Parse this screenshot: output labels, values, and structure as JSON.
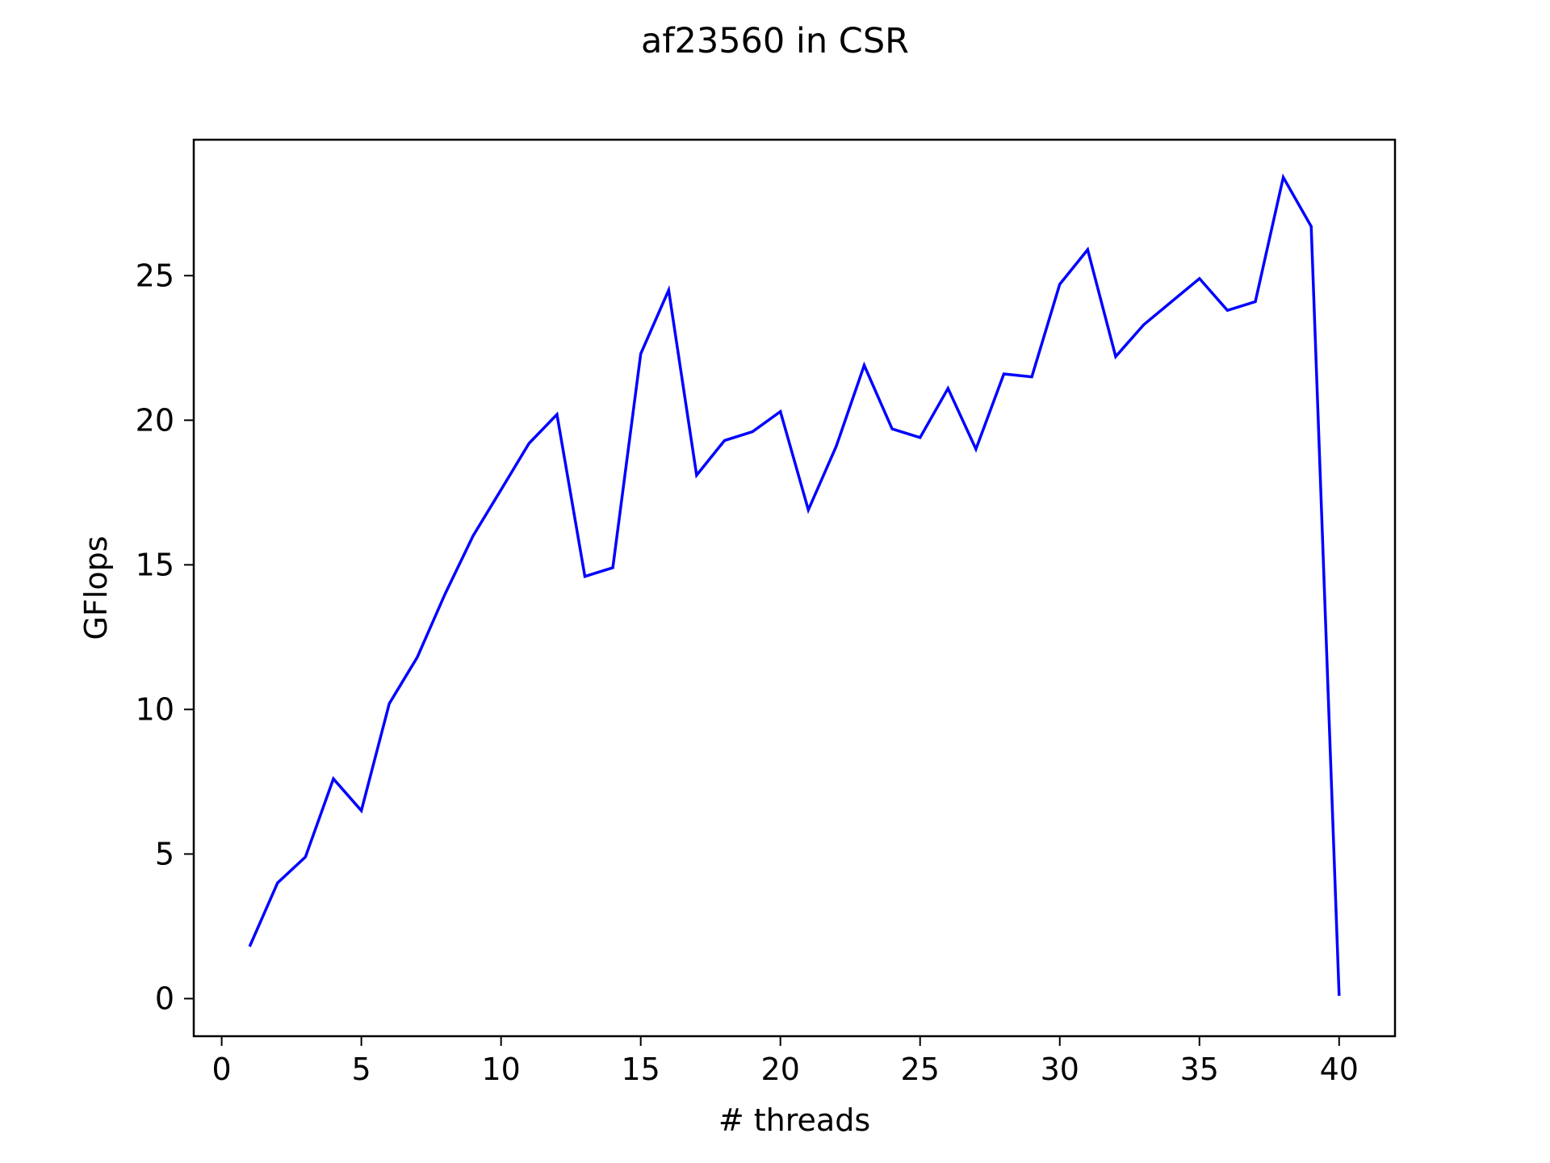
{
  "chart_data": {
    "type": "line",
    "title": "af23560 in CSR",
    "xlabel": "# threads",
    "ylabel": "GFlops",
    "xlim": [
      -1,
      42
    ],
    "ylim": [
      -1.3,
      29.7
    ],
    "xticks": [
      0,
      5,
      10,
      15,
      20,
      25,
      30,
      35,
      40
    ],
    "yticks": [
      0,
      5,
      10,
      15,
      20,
      25
    ],
    "grid": false,
    "legend": "none",
    "line_color": "#0000ff",
    "series": [
      {
        "x": [
          1,
          2,
          3,
          4,
          5,
          6,
          7,
          8,
          9,
          10,
          11,
          12,
          13,
          14,
          15,
          16,
          17,
          18,
          19,
          20,
          21,
          22,
          23,
          24,
          25,
          26,
          27,
          28,
          29,
          30,
          31,
          32,
          33,
          34,
          35,
          36,
          37,
          38,
          39,
          40
        ],
        "values": [
          1.8,
          4.0,
          4.9,
          7.6,
          6.5,
          10.2,
          11.8,
          14.0,
          16.0,
          17.6,
          19.2,
          20.2,
          14.6,
          14.9,
          22.3,
          24.5,
          18.1,
          19.3,
          19.6,
          20.3,
          16.9,
          19.1,
          21.9,
          19.7,
          19.4,
          21.1,
          19.0,
          21.6,
          21.5,
          24.7,
          25.9,
          22.2,
          23.3,
          24.1,
          24.9,
          23.8,
          24.1,
          28.4,
          26.7,
          0.1
        ]
      }
    ]
  }
}
